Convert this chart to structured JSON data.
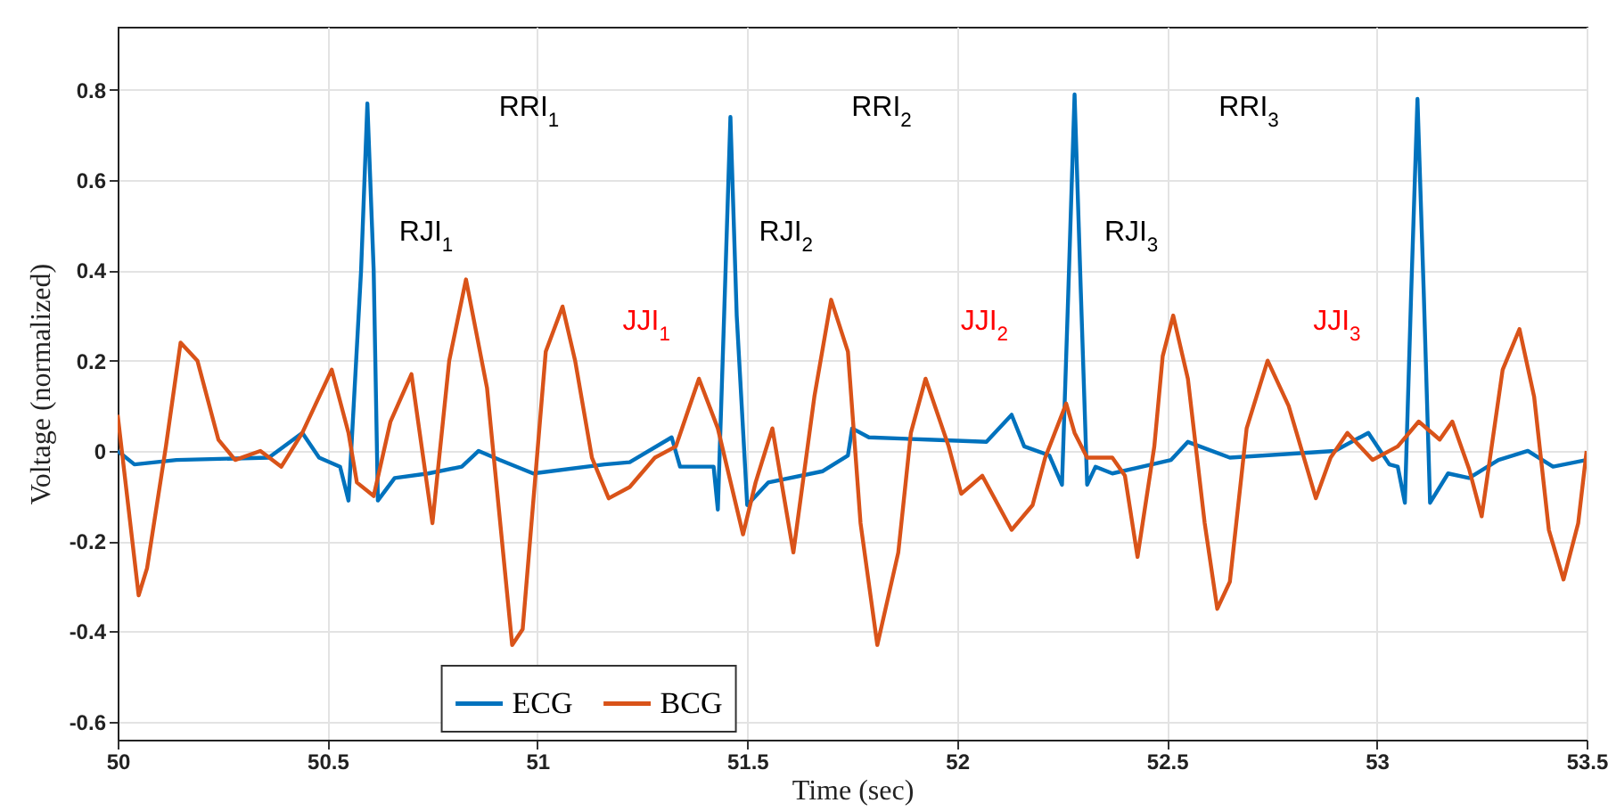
{
  "chart_data": {
    "type": "line",
    "xlabel": "Time (sec)",
    "ylabel": "Voltage (normalized)",
    "xlim": [
      50,
      53.5
    ],
    "xticks": [
      50,
      50.5,
      51,
      51.5,
      52,
      52.5,
      53,
      53.5
    ],
    "ylim": [
      -0.64,
      0.94
    ],
    "yticks": [
      -0.6,
      -0.4,
      -0.2,
      0,
      0.2,
      0.4,
      0.6,
      0.8
    ],
    "grid": true,
    "legend": "bottom",
    "line_style": "solid",
    "marker": "none",
    "series": [
      {
        "name": "ECG",
        "color": "#0072bd",
        "x": [
          50.0,
          50.04,
          50.14,
          50.36,
          50.44,
          50.48,
          50.53,
          50.55,
          50.58,
          50.595,
          50.61,
          50.62,
          50.66,
          50.74,
          50.82,
          50.86,
          50.91,
          50.99,
          51.16,
          51.22,
          51.32,
          51.34,
          51.42,
          51.43,
          51.445,
          51.46,
          51.475,
          51.5,
          51.55,
          51.68,
          51.74,
          51.75,
          51.79,
          51.93,
          52.07,
          52.13,
          52.16,
          52.22,
          52.25,
          52.265,
          52.28,
          52.295,
          52.31,
          52.33,
          52.37,
          52.51,
          52.55,
          52.65,
          52.9,
          52.98,
          53.03,
          53.05,
          53.067,
          53.082,
          53.097,
          53.112,
          53.127,
          53.17,
          53.22,
          53.29,
          53.36,
          53.42,
          53.5
        ],
        "values": [
          0.0,
          -0.03,
          -0.02,
          -0.015,
          0.04,
          -0.015,
          -0.035,
          -0.11,
          0.4,
          0.77,
          0.4,
          -0.11,
          -0.06,
          -0.05,
          -0.035,
          0.0,
          -0.02,
          -0.05,
          -0.03,
          -0.025,
          0.03,
          -0.035,
          -0.035,
          -0.13,
          0.3,
          0.74,
          0.3,
          -0.12,
          -0.07,
          -0.045,
          -0.01,
          0.05,
          0.03,
          0.025,
          0.02,
          0.08,
          0.01,
          -0.01,
          -0.075,
          0.35,
          0.79,
          0.35,
          -0.075,
          -0.035,
          -0.05,
          -0.02,
          0.02,
          -0.015,
          0.0,
          0.04,
          -0.03,
          -0.035,
          -0.115,
          0.35,
          0.78,
          0.35,
          -0.115,
          -0.05,
          -0.06,
          -0.02,
          0.0,
          -0.035,
          -0.02
        ]
      },
      {
        "name": "BCG",
        "color": "#d95319",
        "x": [
          50.0,
          50.05,
          50.07,
          50.115,
          50.15,
          50.19,
          50.24,
          50.28,
          50.34,
          50.39,
          50.44,
          50.51,
          50.55,
          50.57,
          50.61,
          50.65,
          50.7,
          50.75,
          50.79,
          50.83,
          50.88,
          50.94,
          50.965,
          51.02,
          51.06,
          51.09,
          51.13,
          51.17,
          51.22,
          51.28,
          51.33,
          51.385,
          51.43,
          51.49,
          51.52,
          51.56,
          51.61,
          51.66,
          51.7,
          51.74,
          51.77,
          51.81,
          51.86,
          51.89,
          51.925,
          51.98,
          52.01,
          52.06,
          52.13,
          52.18,
          52.21,
          52.26,
          52.28,
          52.31,
          52.37,
          52.4,
          52.43,
          52.47,
          52.49,
          52.515,
          52.55,
          52.59,
          52.62,
          52.65,
          52.69,
          52.74,
          52.79,
          52.855,
          52.89,
          52.93,
          52.99,
          53.05,
          53.1,
          53.15,
          53.18,
          53.22,
          53.25,
          53.3,
          53.34,
          53.375,
          53.41,
          53.445,
          53.48,
          53.5
        ],
        "values": [
          0.08,
          -0.32,
          -0.26,
          0.01,
          0.24,
          0.2,
          0.025,
          -0.02,
          0.0,
          -0.035,
          0.04,
          0.18,
          0.04,
          -0.07,
          -0.1,
          0.065,
          0.17,
          -0.16,
          0.2,
          0.38,
          0.14,
          -0.43,
          -0.395,
          0.22,
          0.32,
          0.2,
          -0.015,
          -0.105,
          -0.08,
          -0.015,
          0.01,
          0.16,
          0.05,
          -0.185,
          -0.07,
          0.05,
          -0.225,
          0.12,
          0.335,
          0.22,
          -0.16,
          -0.43,
          -0.225,
          0.04,
          0.16,
          0.01,
          -0.095,
          -0.055,
          -0.175,
          -0.12,
          -0.015,
          0.105,
          0.04,
          -0.015,
          -0.015,
          -0.055,
          -0.235,
          0.01,
          0.21,
          0.3,
          0.16,
          -0.16,
          -0.35,
          -0.29,
          0.05,
          0.2,
          0.1,
          -0.105,
          -0.015,
          0.04,
          -0.02,
          0.01,
          0.065,
          0.025,
          0.065,
          -0.04,
          -0.145,
          0.18,
          0.27,
          0.12,
          -0.175,
          -0.285,
          -0.16,
          0.0
        ]
      }
    ],
    "annotations": [
      "RRI$_{1}$",
      "RRI$_{2}$",
      "RRI$_{3}$",
      "RJI$_{1}$",
      "RJI$_{2}$",
      "RJI$_{3}$",
      "JJI$_{1}$",
      "JJI$_{2}$",
      "JJI$_{3}$"
    ]
  }
}
